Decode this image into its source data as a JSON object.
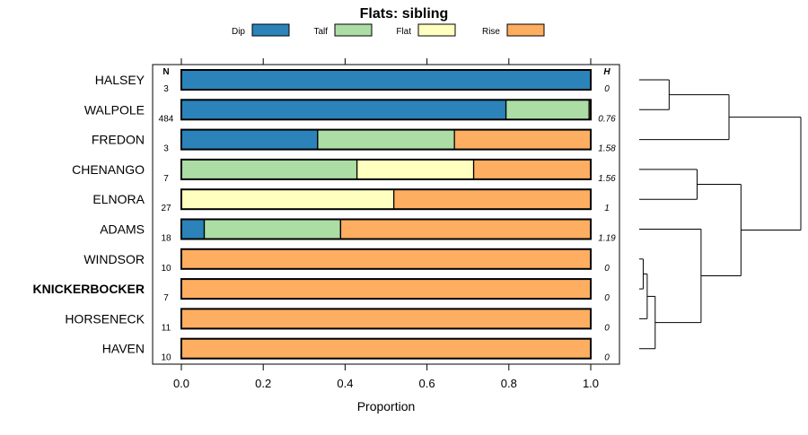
{
  "chart_data": {
    "type": "bar",
    "orientation": "horizontal",
    "stacked": true,
    "title": "Flats: sibling",
    "xlabel": "Proportion",
    "ylabel": "",
    "xlim": [
      0,
      1
    ],
    "xticks": [
      0.0,
      0.2,
      0.4,
      0.6,
      0.8,
      1.0
    ],
    "xtick_labels": [
      "0.0",
      "0.2",
      "0.4",
      "0.6",
      "0.8",
      "1.0"
    ],
    "legend_placement": "top",
    "series": [
      {
        "name": "Dip",
        "color": "#2b83ba",
        "values": [
          1.0,
          0.793,
          0.333,
          0.0,
          0.0,
          0.056,
          0.0,
          0.0,
          0.0,
          0.0
        ]
      },
      {
        "name": "Talf",
        "color": "#abdda4",
        "values": [
          0.0,
          0.203,
          0.334,
          0.429,
          0.0,
          0.333,
          0.0,
          0.0,
          0.0,
          0.0
        ]
      },
      {
        "name": "Flat",
        "color": "#ffffbf",
        "values": [
          0.0,
          0.0,
          0.0,
          0.285,
          0.519,
          0.0,
          0.0,
          0.0,
          0.0,
          0.0
        ]
      },
      {
        "name": "Rise",
        "color": "#fdae61",
        "values": [
          0.0,
          0.004,
          0.333,
          0.286,
          0.481,
          0.611,
          1.0,
          1.0,
          1.0,
          1.0
        ]
      }
    ],
    "categories": [
      "HALSEY",
      "WALPOLE",
      "FREDON",
      "CHENANGO",
      "ELNORA",
      "ADAMS",
      "WINDSOR",
      "KNICKERBOCKER",
      "HORSENECK",
      "HAVEN"
    ],
    "highlight_category": "KNICKERBOCKER",
    "n_header": "N",
    "h_header": "H",
    "n_values": [
      "3",
      "484",
      "3",
      "7",
      "27",
      "18",
      "10",
      "7",
      "11",
      "10"
    ],
    "h_values": [
      "0",
      "0.76",
      "1.58",
      "1.56",
      "1",
      "1.19",
      "0",
      "0",
      "0",
      "0"
    ],
    "dendrogram": {
      "merges": [
        {
          "a": "leaf:0",
          "b": "leaf:1",
          "height": 0.15
        },
        {
          "a": "node:0",
          "b": "leaf:2",
          "height": 0.45
        },
        {
          "a": "leaf:3",
          "b": "leaf:4",
          "height": 0.29
        },
        {
          "a": "leaf:6",
          "b": "leaf:7",
          "height": 0.02
        },
        {
          "a": "node:3",
          "b": "leaf:8",
          "height": 0.04
        },
        {
          "a": "node:4",
          "b": "leaf:9",
          "height": 0.08
        },
        {
          "a": "leaf:5",
          "b": "node:5",
          "height": 0.31
        },
        {
          "a": "node:2",
          "b": "node:6",
          "height": 0.51
        },
        {
          "a": "node:1",
          "b": "node:7",
          "height": 0.81
        }
      ],
      "max_height": 0.81
    }
  }
}
